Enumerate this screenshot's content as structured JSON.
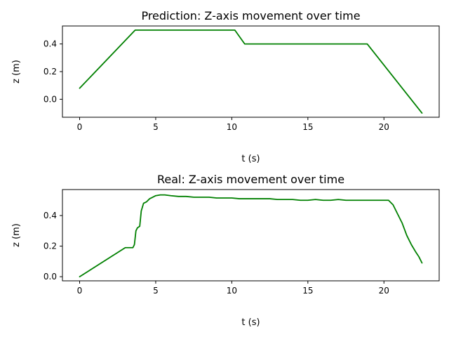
{
  "chart_data": [
    {
      "type": "line",
      "title": "Prediction: Z-axis movement over time",
      "xlabel": "t (s)",
      "ylabel": "z (m)",
      "xlim": [
        -1.13,
        23.63
      ],
      "ylim": [
        -0.13,
        0.53
      ],
      "xticks": [
        0,
        5,
        10,
        15,
        20
      ],
      "xtick_labels": [
        "0",
        "5",
        "10",
        "15",
        "20"
      ],
      "yticks": [
        0.0,
        0.2,
        0.4
      ],
      "ytick_labels": [
        "0.0",
        "0.2",
        "0.4"
      ],
      "grid": false,
      "series": [
        {
          "color": "#008000",
          "x": [
            0,
            3.65,
            10.2,
            10.85,
            18.9,
            22.5
          ],
          "y": [
            0.08,
            0.5,
            0.5,
            0.4,
            0.4,
            -0.1
          ]
        }
      ]
    },
    {
      "type": "line",
      "title": "Real: Z-axis movement over time",
      "xlabel": "t (s)",
      "ylabel": "z (m)",
      "xlim": [
        -1.13,
        23.63
      ],
      "ylim": [
        -0.027,
        0.57
      ],
      "xticks": [
        0,
        5,
        10,
        15,
        20
      ],
      "xtick_labels": [
        "0",
        "5",
        "10",
        "15",
        "20"
      ],
      "yticks": [
        0.0,
        0.2,
        0.4
      ],
      "ytick_labels": [
        "0.0",
        "0.2",
        "0.4"
      ],
      "grid": false,
      "series": [
        {
          "color": "#008000",
          "x": [
            0,
            3.0,
            3.5,
            3.6,
            3.7,
            3.8,
            3.95,
            4.05,
            4.2,
            4.4,
            4.6,
            4.8,
            5.0,
            5.3,
            5.6,
            6.0,
            6.5,
            7.0,
            7.5,
            8.0,
            8.5,
            9.0,
            9.5,
            10.0,
            10.5,
            11.0,
            11.5,
            12.0,
            12.5,
            13.0,
            13.5,
            14.0,
            14.5,
            15.0,
            15.5,
            16.0,
            16.5,
            17.0,
            17.5,
            18.0,
            18.5,
            19.0,
            19.5,
            20.0,
            20.3,
            20.6,
            20.9,
            21.2,
            21.5,
            21.8,
            22.1,
            22.3,
            22.5
          ],
          "y": [
            0.0,
            0.19,
            0.19,
            0.21,
            0.3,
            0.32,
            0.33,
            0.43,
            0.48,
            0.49,
            0.51,
            0.52,
            0.53,
            0.535,
            0.535,
            0.53,
            0.525,
            0.525,
            0.52,
            0.52,
            0.52,
            0.515,
            0.515,
            0.515,
            0.51,
            0.51,
            0.51,
            0.51,
            0.51,
            0.505,
            0.505,
            0.505,
            0.5,
            0.5,
            0.505,
            0.5,
            0.5,
            0.505,
            0.5,
            0.5,
            0.5,
            0.5,
            0.5,
            0.5,
            0.5,
            0.47,
            0.41,
            0.35,
            0.27,
            0.21,
            0.16,
            0.13,
            0.09
          ]
        }
      ]
    }
  ]
}
